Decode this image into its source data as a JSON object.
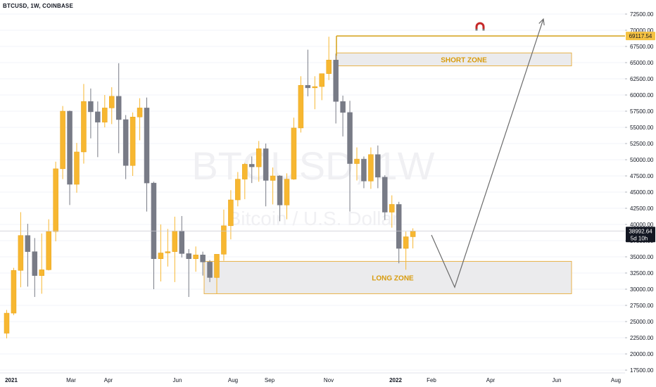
{
  "header": {
    "title": "BTCUSD, 1W, COINBASE"
  },
  "watermark": {
    "symbol": "BTCUSD, 1W",
    "description": "Bitcoin / U.S. Dollar"
  },
  "colors": {
    "up": "#f7b731",
    "up_border": "#e8a317",
    "down": "#787b86",
    "zone_fill": "#ebebed",
    "zone_border": "#e8b24a",
    "zone_text": "#d89b0c",
    "resistance_line": "#d4a017",
    "arrow": "#6b6b6b",
    "price_tag_bg": "#131722",
    "resistance_tag_bg": "#f5c242",
    "grid": "#f0f3fa"
  },
  "zones": [
    {
      "label": "SHORT ZONE",
      "y_top": 66500,
      "y_bottom": 64500
    },
    {
      "label": "LONG ZONE",
      "y_top": 34300,
      "y_bottom": 29300
    }
  ],
  "resistance": {
    "value": 69117.54,
    "label": "69117.54"
  },
  "current_price": {
    "value": 38992.64,
    "label": "38992.64",
    "countdown": "5d 10h"
  },
  "magnet_icon": "magnet-icon",
  "chart_data": {
    "type": "candlestick",
    "title": "BTCUSD, 1W, COINBASE",
    "ylim": [
      17500,
      73750
    ],
    "y_ticks": [
      "72500.00",
      "70000.00",
      "67500.00",
      "65000.00",
      "62500.00",
      "60000.00",
      "57500.00",
      "55000.00",
      "52500.00",
      "50000.00",
      "47500.00",
      "45000.00",
      "42500.00",
      "40000.00",
      "37500.00",
      "35000.00",
      "32500.00",
      "30000.00",
      "27500.00",
      "25000.00",
      "22500.00",
      "20000.00",
      "17500.00"
    ],
    "x_ticks": [
      "2021",
      "Mar",
      "Apr",
      "Jun",
      "Aug",
      "Sep",
      "Nov",
      "2022",
      "Feb",
      "Apr",
      "Jun",
      "Aug"
    ],
    "candles": [
      {
        "date": "2020-12-21",
        "o": 23200,
        "h": 26800,
        "l": 22400,
        "c": 26300
      },
      {
        "date": "2020-12-28",
        "o": 26300,
        "h": 33300,
        "l": 26000,
        "c": 32900
      },
      {
        "date": "2021-01-04",
        "o": 32900,
        "h": 41900,
        "l": 30300,
        "c": 38300
      },
      {
        "date": "2021-01-11",
        "o": 38300,
        "h": 40100,
        "l": 30400,
        "c": 35800
      },
      {
        "date": "2021-01-18",
        "o": 35800,
        "h": 37900,
        "l": 28800,
        "c": 32100
      },
      {
        "date": "2021-01-25",
        "o": 32100,
        "h": 38600,
        "l": 29300,
        "c": 33000
      },
      {
        "date": "2021-02-01",
        "o": 33000,
        "h": 40800,
        "l": 32900,
        "c": 38900
      },
      {
        "date": "2021-02-08",
        "o": 38900,
        "h": 49700,
        "l": 37400,
        "c": 48600
      },
      {
        "date": "2021-02-15",
        "o": 48600,
        "h": 58300,
        "l": 47000,
        "c": 57500
      },
      {
        "date": "2021-02-22",
        "o": 57500,
        "h": 57600,
        "l": 43000,
        "c": 46200
      },
      {
        "date": "2021-03-01",
        "o": 46200,
        "h": 52600,
        "l": 44900,
        "c": 51200
      },
      {
        "date": "2021-03-08",
        "o": 51200,
        "h": 61700,
        "l": 49400,
        "c": 59000
      },
      {
        "date": "2021-03-15",
        "o": 59000,
        "h": 61000,
        "l": 53300,
        "c": 57400
      },
      {
        "date": "2021-03-22",
        "o": 57400,
        "h": 59000,
        "l": 50400,
        "c": 55800
      },
      {
        "date": "2021-03-29",
        "o": 55800,
        "h": 60000,
        "l": 55000,
        "c": 58000
      },
      {
        "date": "2021-04-05",
        "o": 58000,
        "h": 61200,
        "l": 55500,
        "c": 59800
      },
      {
        "date": "2021-04-12",
        "o": 59800,
        "h": 64900,
        "l": 51000,
        "c": 56200
      },
      {
        "date": "2021-04-19",
        "o": 56200,
        "h": 56900,
        "l": 47000,
        "c": 49100
      },
      {
        "date": "2021-04-26",
        "o": 49100,
        "h": 57300,
        "l": 47500,
        "c": 56600
      },
      {
        "date": "2021-05-03",
        "o": 56600,
        "h": 59500,
        "l": 53000,
        "c": 58000
      },
      {
        "date": "2021-05-10",
        "o": 58000,
        "h": 59600,
        "l": 42000,
        "c": 46400
      },
      {
        "date": "2021-05-17",
        "o": 46400,
        "h": 46600,
        "l": 30000,
        "c": 34700
      },
      {
        "date": "2021-05-24",
        "o": 34700,
        "h": 40000,
        "l": 31200,
        "c": 35600
      },
      {
        "date": "2021-05-31",
        "o": 35600,
        "h": 39300,
        "l": 33500,
        "c": 35800
      },
      {
        "date": "2021-06-07",
        "o": 35800,
        "h": 41200,
        "l": 31100,
        "c": 39000
      },
      {
        "date": "2021-06-14",
        "o": 39000,
        "h": 41300,
        "l": 34900,
        "c": 35500
      },
      {
        "date": "2021-06-21",
        "o": 35500,
        "h": 36200,
        "l": 28800,
        "c": 34700
      },
      {
        "date": "2021-06-28",
        "o": 34700,
        "h": 36600,
        "l": 32700,
        "c": 35300
      },
      {
        "date": "2021-07-05",
        "o": 35300,
        "h": 35800,
        "l": 32100,
        "c": 34200
      },
      {
        "date": "2021-07-12",
        "o": 34200,
        "h": 34500,
        "l": 31100,
        "c": 31800
      },
      {
        "date": "2021-07-19",
        "o": 31800,
        "h": 35300,
        "l": 29300,
        "c": 35400
      },
      {
        "date": "2021-07-26",
        "o": 35400,
        "h": 42300,
        "l": 34400,
        "c": 39800
      },
      {
        "date": "2021-08-02",
        "o": 39800,
        "h": 45300,
        "l": 37700,
        "c": 43800
      },
      {
        "date": "2021-08-09",
        "o": 43800,
        "h": 48100,
        "l": 42800,
        "c": 47000
      },
      {
        "date": "2021-08-16",
        "o": 47000,
        "h": 49500,
        "l": 43900,
        "c": 49300
      },
      {
        "date": "2021-08-23",
        "o": 49300,
        "h": 50500,
        "l": 46400,
        "c": 48900
      },
      {
        "date": "2021-08-30",
        "o": 48900,
        "h": 52900,
        "l": 46600,
        "c": 51700
      },
      {
        "date": "2021-09-06",
        "o": 51700,
        "h": 52500,
        "l": 42800,
        "c": 46800
      },
      {
        "date": "2021-09-13",
        "o": 46800,
        "h": 48800,
        "l": 43100,
        "c": 47500
      },
      {
        "date": "2021-09-20",
        "o": 47500,
        "h": 47600,
        "l": 40500,
        "c": 43000
      },
      {
        "date": "2021-09-27",
        "o": 43000,
        "h": 47900,
        "l": 40800,
        "c": 47000
      },
      {
        "date": "2021-10-04",
        "o": 47000,
        "h": 56500,
        "l": 46900,
        "c": 54900
      },
      {
        "date": "2021-10-11",
        "o": 54900,
        "h": 62900,
        "l": 54200,
        "c": 61500
      },
      {
        "date": "2021-10-18",
        "o": 61500,
        "h": 67000,
        "l": 59800,
        "c": 61100
      },
      {
        "date": "2021-10-25",
        "o": 61100,
        "h": 62900,
        "l": 57800,
        "c": 61300
      },
      {
        "date": "2021-11-01",
        "o": 61300,
        "h": 63300,
        "l": 59200,
        "c": 63300
      },
      {
        "date": "2021-11-08",
        "o": 63300,
        "h": 69000,
        "l": 62300,
        "c": 65400
      },
      {
        "date": "2021-11-15",
        "o": 65400,
        "h": 66400,
        "l": 55600,
        "c": 59000
      },
      {
        "date": "2021-11-22",
        "o": 59000,
        "h": 59900,
        "l": 53600,
        "c": 57300
      },
      {
        "date": "2021-11-29",
        "o": 57300,
        "h": 59100,
        "l": 42000,
        "c": 49400
      },
      {
        "date": "2021-12-06",
        "o": 49400,
        "h": 51900,
        "l": 46800,
        "c": 50100
      },
      {
        "date": "2021-12-13",
        "o": 50100,
        "h": 50500,
        "l": 45600,
        "c": 46700
      },
      {
        "date": "2021-12-20",
        "o": 46700,
        "h": 51900,
        "l": 45500,
        "c": 50800
      },
      {
        "date": "2021-12-27",
        "o": 50800,
        "h": 52200,
        "l": 45600,
        "c": 47300
      },
      {
        "date": "2022-01-03",
        "o": 47300,
        "h": 47600,
        "l": 40700,
        "c": 41900
      },
      {
        "date": "2022-01-10",
        "o": 41900,
        "h": 44500,
        "l": 39500,
        "c": 43100
      },
      {
        "date": "2022-01-17",
        "o": 43100,
        "h": 43500,
        "l": 34000,
        "c": 36300
      },
      {
        "date": "2022-01-24",
        "o": 36300,
        "h": 38900,
        "l": 33000,
        "c": 38100
      },
      {
        "date": "2022-01-31",
        "o": 38100,
        "h": 39400,
        "l": 36300,
        "c": 38992.64
      }
    ],
    "projection": [
      {
        "date": "2022-02-07",
        "y": 38000
      },
      {
        "date": "2022-03-07",
        "y": 30300
      },
      {
        "date": "2022-05-16",
        "y": 73000
      }
    ]
  }
}
